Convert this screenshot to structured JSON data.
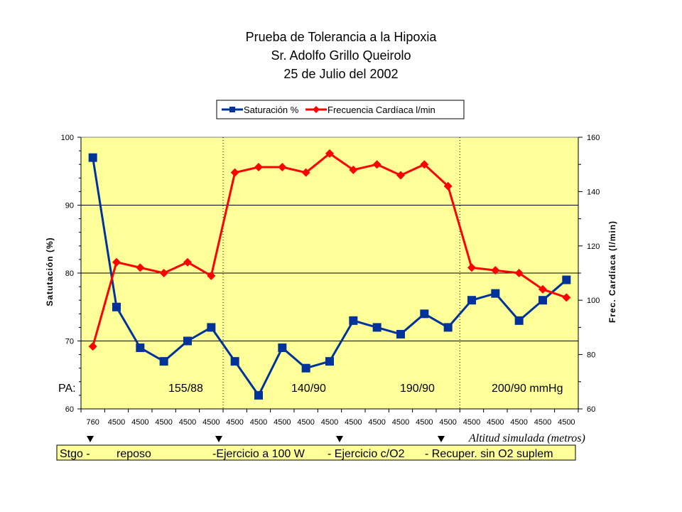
{
  "chart_data": {
    "type": "line",
    "title_lines": [
      "Prueba de Tolerancia a la Hipoxia",
      "Sr. Adolfo Grillo Queirolo",
      "25 de Julio del 2002"
    ],
    "legend": [
      "Saturación %",
      "Frecuencia Cardíaca l/min"
    ],
    "ylabel": "Satutación (%)",
    "y2label": "Frec. Cardíaca (l/min)",
    "ylim": [
      60,
      100
    ],
    "y_ticks": [
      "60",
      "70",
      "80",
      "90",
      "100"
    ],
    "y2lim": [
      60,
      160
    ],
    "y2_ticks": [
      "60",
      "80",
      "100",
      "120",
      "140",
      "160"
    ],
    "x_labels": [
      "760",
      "4500",
      "4500",
      "4500",
      "4500",
      "4500",
      "4500",
      "4500",
      "4500",
      "4500",
      "4500",
      "4500",
      "4500",
      "4500",
      "4500",
      "4500",
      "4500",
      "4500",
      "4500",
      "4500",
      "4500"
    ],
    "series": [
      {
        "name": "Saturación %",
        "axis": "left",
        "color": "#003399",
        "marker": "square",
        "values": [
          97,
          75,
          69,
          67,
          70,
          72,
          67,
          62,
          69,
          66,
          67,
          73,
          72,
          71,
          74,
          72,
          76,
          77,
          73,
          76,
          79
        ]
      },
      {
        "name": "Frecuencia Cardíaca l/min",
        "axis": "right",
        "color": "#ff0000",
        "marker": "diamond",
        "values": [
          83,
          114,
          112,
          110,
          114,
          109,
          147,
          149,
          149,
          147,
          154,
          148,
          150,
          146,
          150,
          142,
          112,
          111,
          110,
          104,
          101
        ]
      }
    ],
    "phase_dividers_after_index": [
      5,
      15
    ],
    "pa_labels": [
      "PA:",
      "155/88",
      "140/90",
      "190/90",
      "200/90 mmHg"
    ],
    "x_axis_caption": "Altitud simulada (metros)",
    "phases": [
      "Stgo -",
      "reposo",
      "-Ejercicio a 100 W",
      "- Ejercicio c/O2",
      "- Recuper. sin O2 suplem"
    ],
    "colors": {
      "plot_bg": "#ffff99",
      "saturation": "#003399",
      "heart_rate": "#ff0000"
    }
  }
}
